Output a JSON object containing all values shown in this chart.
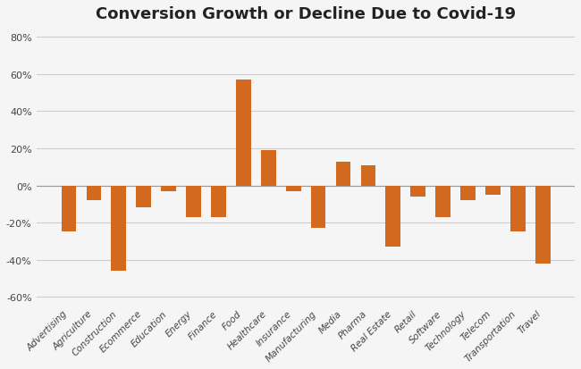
{
  "title": "Conversion Growth or Decline Due to Covid-19",
  "categories": [
    "Advertising",
    "Agriculture",
    "Construction",
    "Ecommerce",
    "Education",
    "Energy",
    "Finance",
    "Food",
    "Healthcare",
    "Insurance",
    "Manufacturing",
    "Media",
    "Pharma",
    "Real Estate",
    "Retail",
    "Software",
    "Technology",
    "Telecom",
    "Transportation",
    "Travel"
  ],
  "values": [
    -25,
    -8,
    -46,
    -12,
    -3,
    -17,
    -17,
    57,
    19,
    -3,
    -23,
    13,
    11,
    -33,
    -6,
    -17,
    -8,
    -5,
    -25,
    -42
  ],
  "bar_color": "#D2691E",
  "ylim": [
    -65,
    85
  ],
  "yticks": [
    -60,
    -40,
    -20,
    0,
    20,
    40,
    60,
    80
  ],
  "background_color": "#f5f5f5",
  "title_fontsize": 13,
  "tick_fontsize": 7.5,
  "grid_color": "#cccccc"
}
